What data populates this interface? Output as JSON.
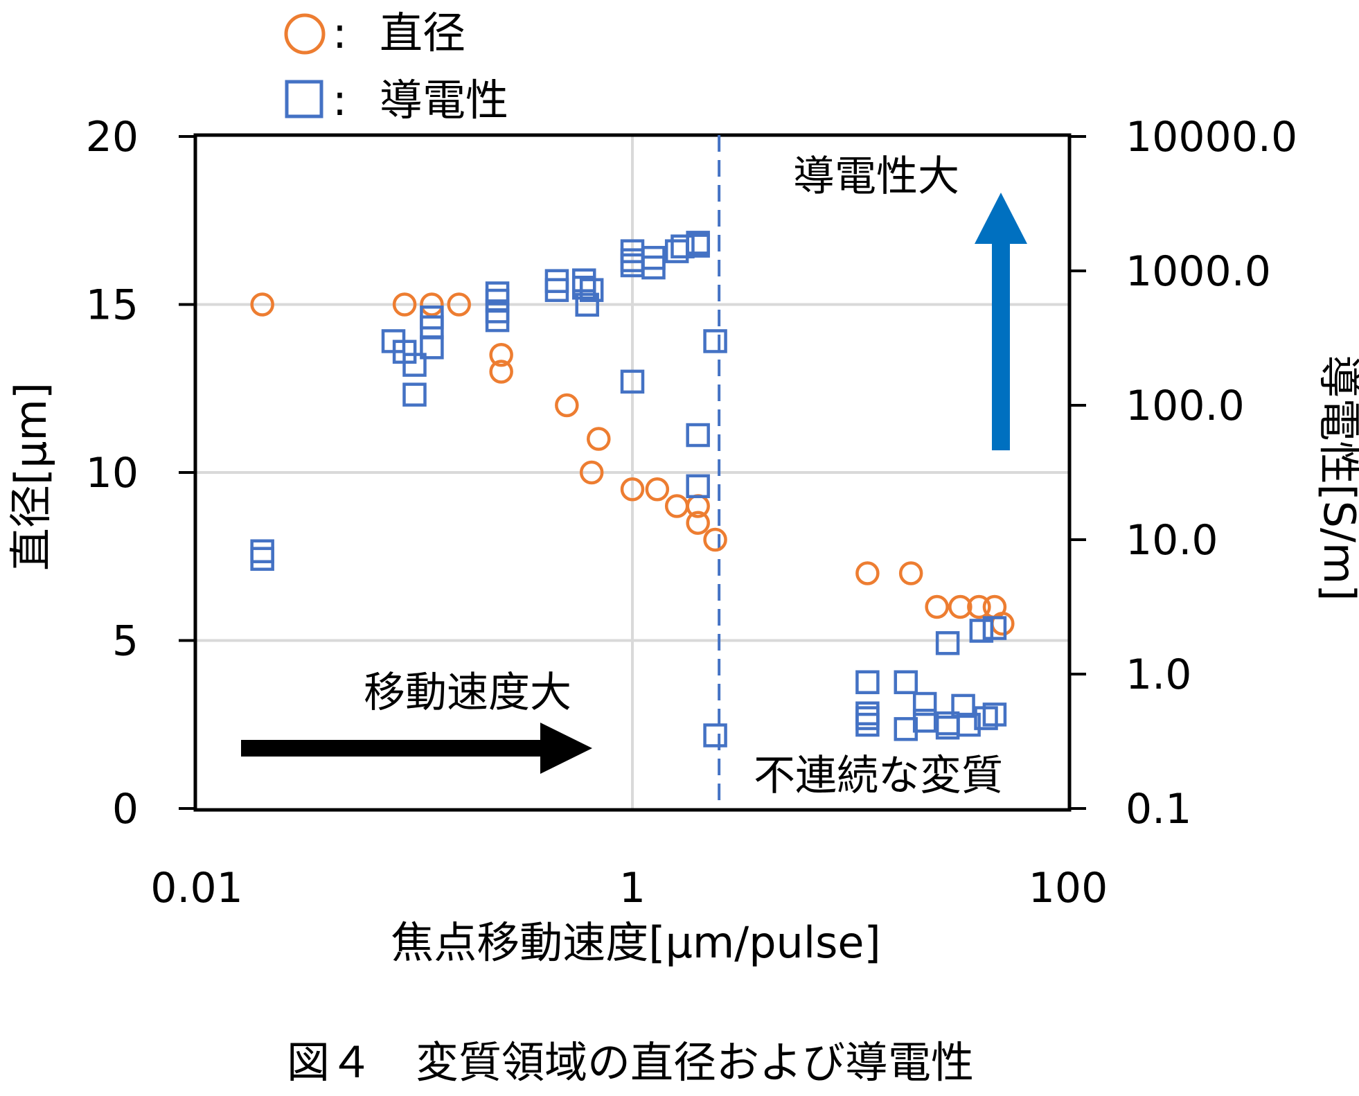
{
  "chart_data": {
    "type": "scatter",
    "caption": "図４　変質領域の直径および導電性",
    "x_axis": {
      "label": "焦点移動速度[μm/pulse]",
      "scale": "log",
      "range": [
        0.01,
        100
      ],
      "ticks": [
        "0.01",
        "1",
        "100"
      ]
    },
    "y_axis_left": {
      "label": "直径[μm]",
      "range": [
        0,
        20
      ],
      "ticks": [
        "0",
        "5",
        "10",
        "15",
        "20"
      ]
    },
    "y_axis_right": {
      "label": "導電性[S/m]",
      "scale": "log",
      "range": [
        0.1,
        10000
      ],
      "ticks": [
        "0.1",
        "1.0",
        "10.0",
        "100.0",
        "1000.0",
        "10000.0"
      ]
    },
    "grid": true,
    "legend": [
      {
        "symbol": "○",
        "sep": ":",
        "label": "直径",
        "color": "#ED7D31"
      },
      {
        "symbol": "□",
        "sep": ":",
        "label": "導電性",
        "color": "#4472C4"
      }
    ],
    "annotations": {
      "speed_label": "移動速度大",
      "conductivity_label": "導電性大",
      "discontinuous_label": "不連続な変質"
    },
    "threshold_x": 2.5,
    "colors": {
      "diameter": "#ED7D31",
      "conductivity": "#4472C4",
      "up_arrow": "#0070C0",
      "right_arrow": "#000000",
      "threshold_line": "#4472C4",
      "grid": "#D9D9D9"
    },
    "series": [
      {
        "name": "直径",
        "axis": "left",
        "marker": "circle",
        "points": [
          [
            0.02,
            15.0
          ],
          [
            0.09,
            15.0
          ],
          [
            0.12,
            15.0
          ],
          [
            0.16,
            15.0
          ],
          [
            0.25,
            13.5
          ],
          [
            0.25,
            13.0
          ],
          [
            0.5,
            12.0
          ],
          [
            0.7,
            11.0
          ],
          [
            0.65,
            10.0
          ],
          [
            1.0,
            9.5
          ],
          [
            1.3,
            9.5
          ],
          [
            1.6,
            9.0
          ],
          [
            2.0,
            9.0
          ],
          [
            2.0,
            8.5
          ],
          [
            2.4,
            8.0
          ],
          [
            12.0,
            7.0
          ],
          [
            19.0,
            7.0
          ],
          [
            25.0,
            6.0
          ],
          [
            32.0,
            6.0
          ],
          [
            39.0,
            6.0
          ],
          [
            46.0,
            6.0
          ],
          [
            50.0,
            5.5
          ]
        ]
      },
      {
        "name": "導電性",
        "axis": "right",
        "marker": "square",
        "points": [
          [
            0.02,
            8.2
          ],
          [
            0.02,
            7.2
          ],
          [
            0.08,
            300
          ],
          [
            0.09,
            250
          ],
          [
            0.1,
            200
          ],
          [
            0.12,
            270
          ],
          [
            0.1,
            120
          ],
          [
            0.12,
            450
          ],
          [
            0.12,
            380
          ],
          [
            0.24,
            680
          ],
          [
            0.24,
            600
          ],
          [
            0.24,
            500
          ],
          [
            0.24,
            430
          ],
          [
            0.45,
            840
          ],
          [
            0.45,
            720
          ],
          [
            0.6,
            850
          ],
          [
            0.6,
            750
          ],
          [
            0.62,
            560
          ],
          [
            0.65,
            720
          ],
          [
            1.0,
            1400
          ],
          [
            1.0,
            1200
          ],
          [
            1.0,
            1100
          ],
          [
            1.25,
            1250
          ],
          [
            1.25,
            1060
          ],
          [
            1.6,
            1400
          ],
          [
            1.7,
            1520
          ],
          [
            2.0,
            1540
          ],
          [
            2.0,
            1620
          ],
          [
            1.0,
            150
          ],
          [
            2.0,
            60
          ],
          [
            2.0,
            25
          ],
          [
            2.4,
            300
          ],
          [
            2.4,
            0.35
          ],
          [
            12.0,
            0.87
          ],
          [
            12.0,
            0.51
          ],
          [
            12.0,
            0.47
          ],
          [
            12.0,
            0.42
          ],
          [
            18.0,
            0.87
          ],
          [
            18.0,
            0.39
          ],
          [
            22.0,
            0.6
          ],
          [
            22.0,
            0.45
          ],
          [
            28.0,
            1.7
          ],
          [
            28.0,
            0.43
          ],
          [
            28.0,
            0.4
          ],
          [
            33.0,
            0.58
          ],
          [
            35.0,
            0.42
          ],
          [
            40.0,
            2.1
          ],
          [
            42.0,
            0.47
          ],
          [
            46.0,
            2.2
          ],
          [
            46.0,
            0.5
          ]
        ]
      }
    ]
  }
}
